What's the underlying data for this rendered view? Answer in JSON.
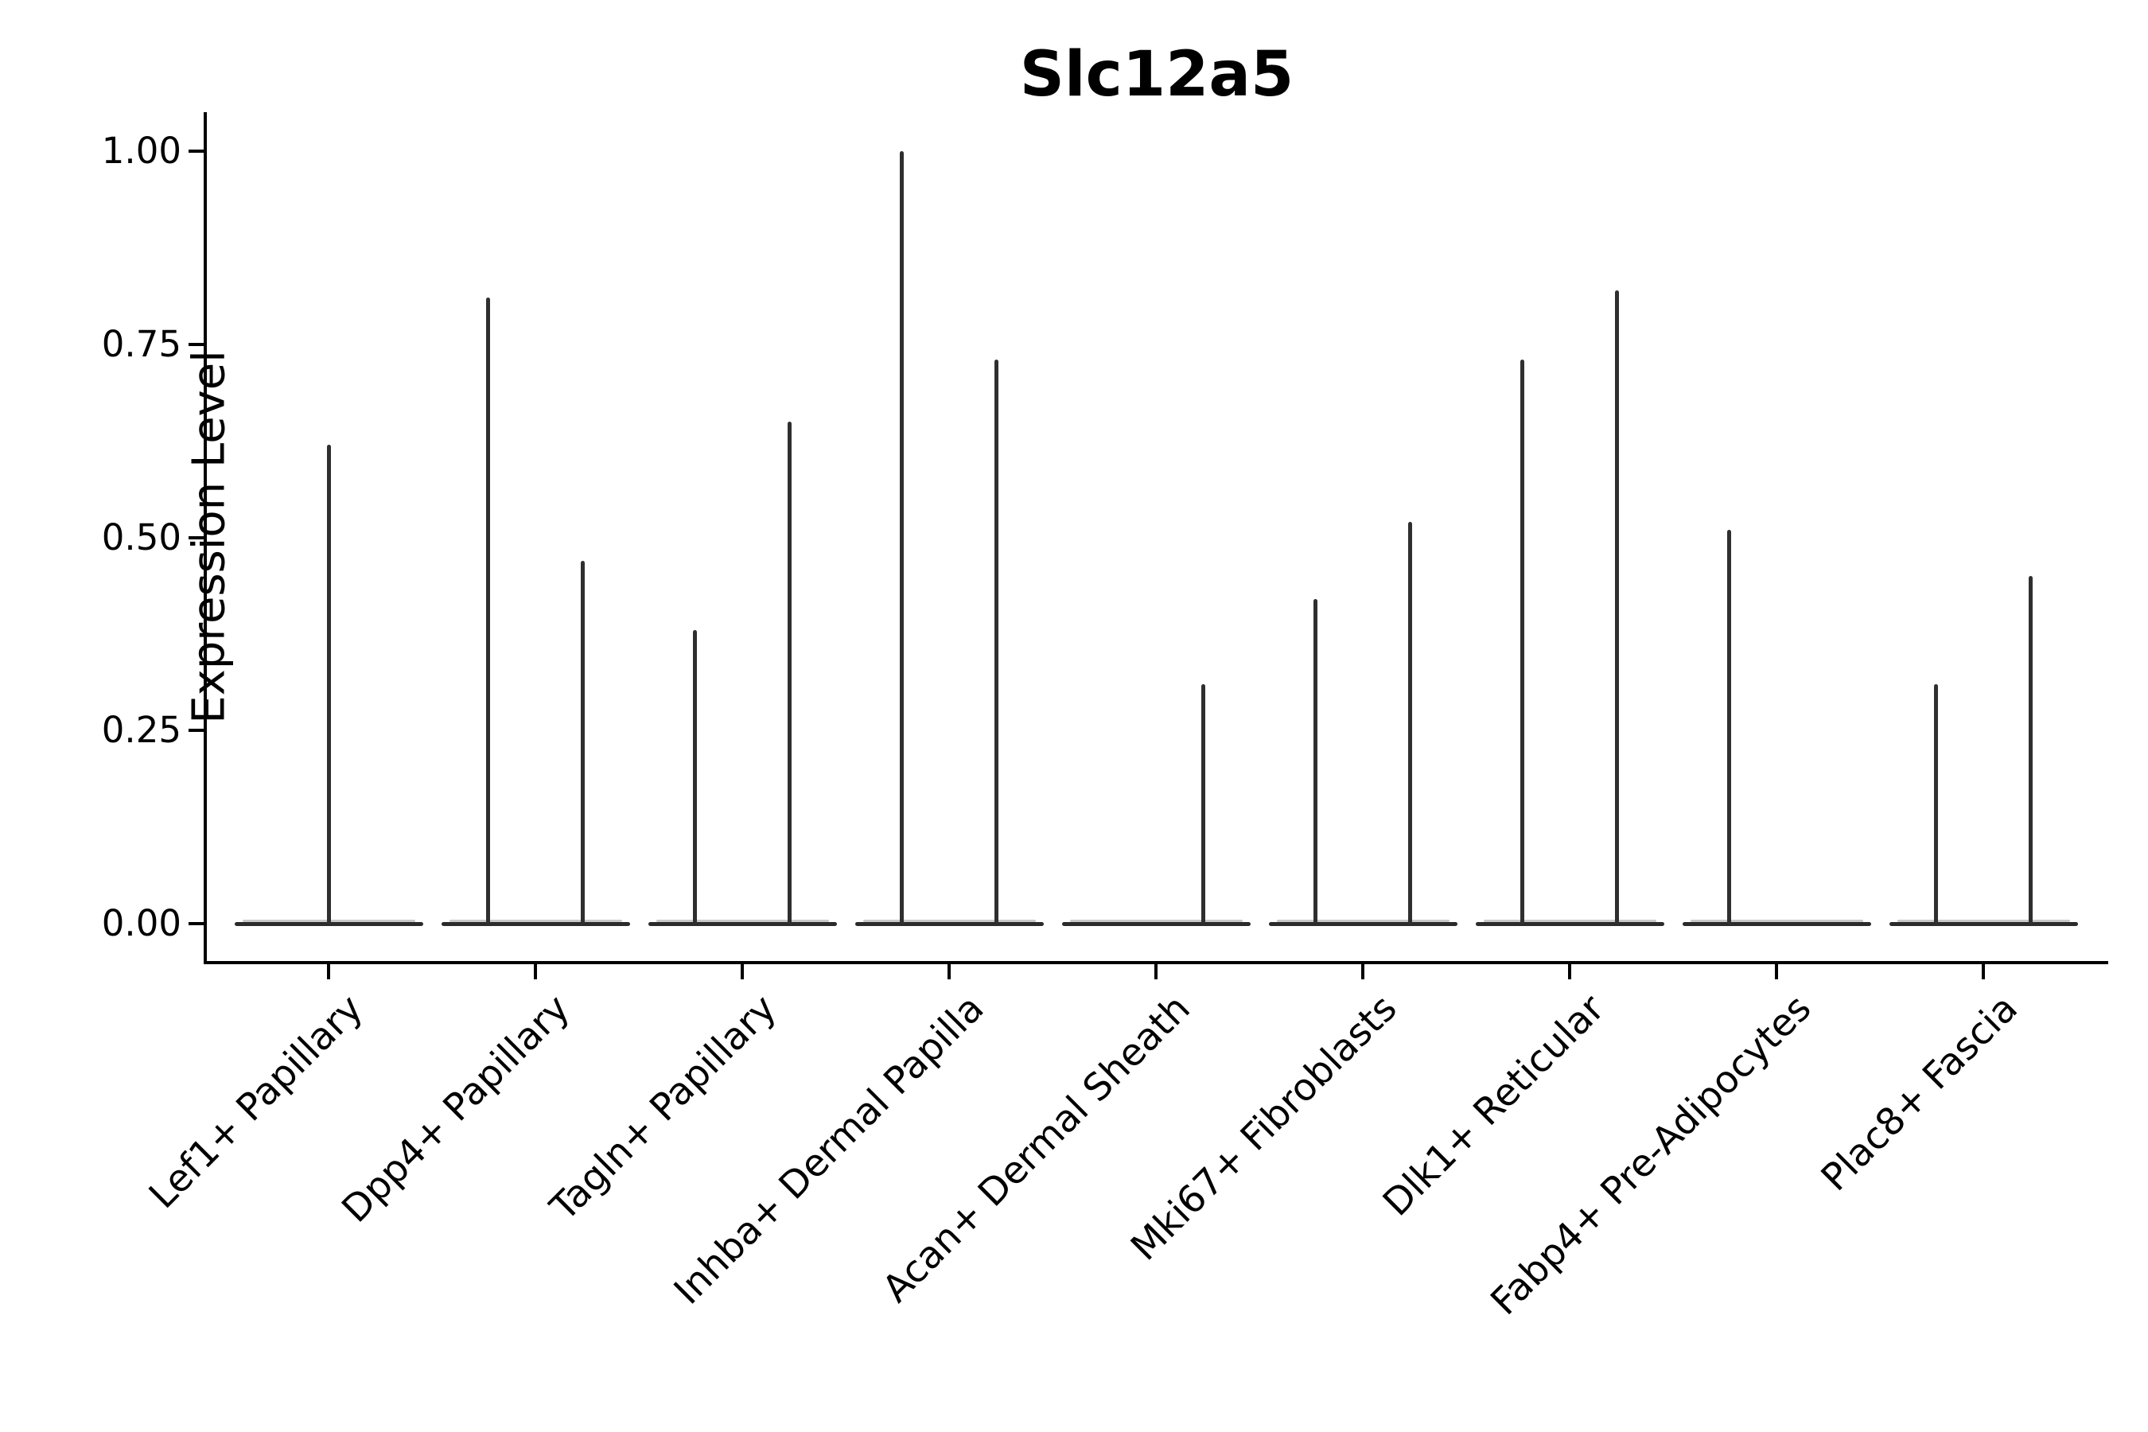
{
  "title": "Slc12a5",
  "y_axis": {
    "label": "Expression Level",
    "tick_labels": [
      "0.00",
      "0.25",
      "0.50",
      "0.75",
      "1.00"
    ]
  },
  "colors": {
    "ink": "#2f2f2f",
    "violin_line": "#2b2b2b",
    "violin_fill": "#c9c9c9",
    "axis": "#000000",
    "background": "#ffffff"
  },
  "chart_data": {
    "type": "violin",
    "title": "Slc12a5",
    "xlabel": "",
    "ylabel": "Expression Level",
    "ylim": [
      -0.05,
      1.05
    ],
    "yticks": [
      0.0,
      0.25,
      0.5,
      0.75,
      1.0
    ],
    "ytick_labels": [
      "0.00",
      "0.25",
      "0.50",
      "0.75",
      "1.00"
    ],
    "grid": false,
    "legend": null,
    "categories": [
      "Lef1+ Papillary",
      "Dpp4+ Papillary",
      "Tagln+ Papillary",
      "Inhba+ Dermal Papilla",
      "Acan+ Dermal Sheath",
      "Mki67+ Fibroblasts",
      "Dlk1+ Reticular",
      "Fabp4+ Pre-Adipocytes",
      "Plac8+ Fascia"
    ],
    "description": "Violin plot of Slc12a5 expression; each violin collapses to a flat line at 0 with thin spikes reaching the maximum expression of rare positive cells.",
    "series": [
      {
        "category": "Lef1+ Papillary",
        "spikes": [
          {
            "position": "center",
            "max": 0.62
          }
        ]
      },
      {
        "category": "Dpp4+ Papillary",
        "spikes": [
          {
            "position": "left",
            "max": 0.81
          },
          {
            "position": "right",
            "max": 0.47
          }
        ]
      },
      {
        "category": "Tagln+ Papillary",
        "spikes": [
          {
            "position": "left",
            "max": 0.38
          },
          {
            "position": "right",
            "max": 0.65
          }
        ]
      },
      {
        "category": "Inhba+ Dermal Papilla",
        "spikes": [
          {
            "position": "left",
            "max": 1.0
          },
          {
            "position": "right",
            "max": 0.73
          }
        ]
      },
      {
        "category": "Acan+ Dermal Sheath",
        "spikes": [
          {
            "position": "right",
            "max": 0.31
          }
        ]
      },
      {
        "category": "Mki67+ Fibroblasts",
        "spikes": [
          {
            "position": "left",
            "max": 0.42
          },
          {
            "position": "right",
            "max": 0.52
          }
        ]
      },
      {
        "category": "Dlk1+ Reticular",
        "spikes": [
          {
            "position": "left",
            "max": 0.73
          },
          {
            "position": "right",
            "max": 0.82
          }
        ]
      },
      {
        "category": "Fabp4+ Pre-Adipocytes",
        "spikes": [
          {
            "position": "left",
            "max": 0.51
          }
        ]
      },
      {
        "category": "Plac8+ Fascia",
        "spikes": [
          {
            "position": "left",
            "max": 0.31
          },
          {
            "position": "right",
            "max": 0.45
          }
        ]
      }
    ],
    "baseline_value": 0.0
  }
}
